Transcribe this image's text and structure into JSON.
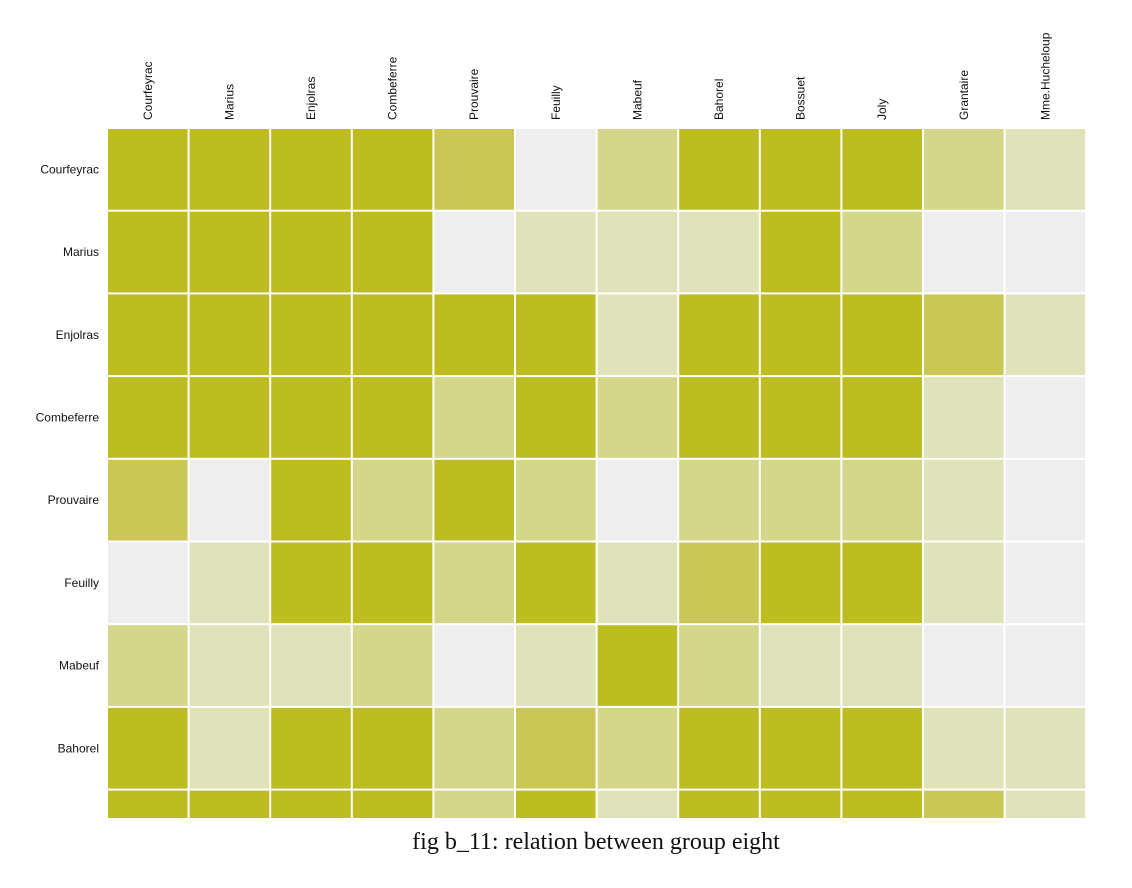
{
  "caption": "fig b_11: relation between group eight",
  "colors": {
    "0": "#eeeeee",
    "1": "#e0e2ba",
    "2": "#d4d68a",
    "3": "#cac757",
    "4": "#bdbd22"
  },
  "chart_data": {
    "type": "heatmap",
    "columns": [
      "Courfeyrac",
      "Marius",
      "Enjolras",
      "Combeferre",
      "Prouvaire",
      "Feuilly",
      "Mabeuf",
      "Bahorel",
      "Bossuet",
      "Joly",
      "Grantaire",
      "Mme.Hucheloup"
    ],
    "rows": [
      "Courfeyrac",
      "Marius",
      "Enjolras",
      "Combeferre",
      "Prouvaire",
      "Feuilly",
      "Mabeuf",
      "Bahorel",
      ""
    ],
    "scale_note": "0 = no relation (light gray) to 4 = strongest relation (dark olive)",
    "values": [
      [
        4,
        4,
        4,
        4,
        3,
        0,
        2,
        4,
        4,
        4,
        2,
        1
      ],
      [
        4,
        4,
        4,
        4,
        0,
        1,
        1,
        1,
        4,
        2,
        0,
        0
      ],
      [
        4,
        4,
        4,
        4,
        4,
        4,
        1,
        4,
        4,
        4,
        3,
        1
      ],
      [
        4,
        4,
        4,
        4,
        2,
        4,
        2,
        4,
        4,
        4,
        1,
        0
      ],
      [
        3,
        0,
        4,
        2,
        4,
        2,
        0,
        2,
        2,
        2,
        1,
        0
      ],
      [
        0,
        1,
        4,
        4,
        2,
        4,
        1,
        3,
        4,
        4,
        1,
        0
      ],
      [
        2,
        1,
        1,
        2,
        0,
        1,
        4,
        2,
        1,
        1,
        0,
        0
      ],
      [
        4,
        1,
        4,
        4,
        2,
        3,
        2,
        4,
        4,
        4,
        1,
        1
      ],
      [
        4,
        4,
        4,
        4,
        2,
        4,
        1,
        4,
        4,
        4,
        3,
        1
      ]
    ]
  }
}
